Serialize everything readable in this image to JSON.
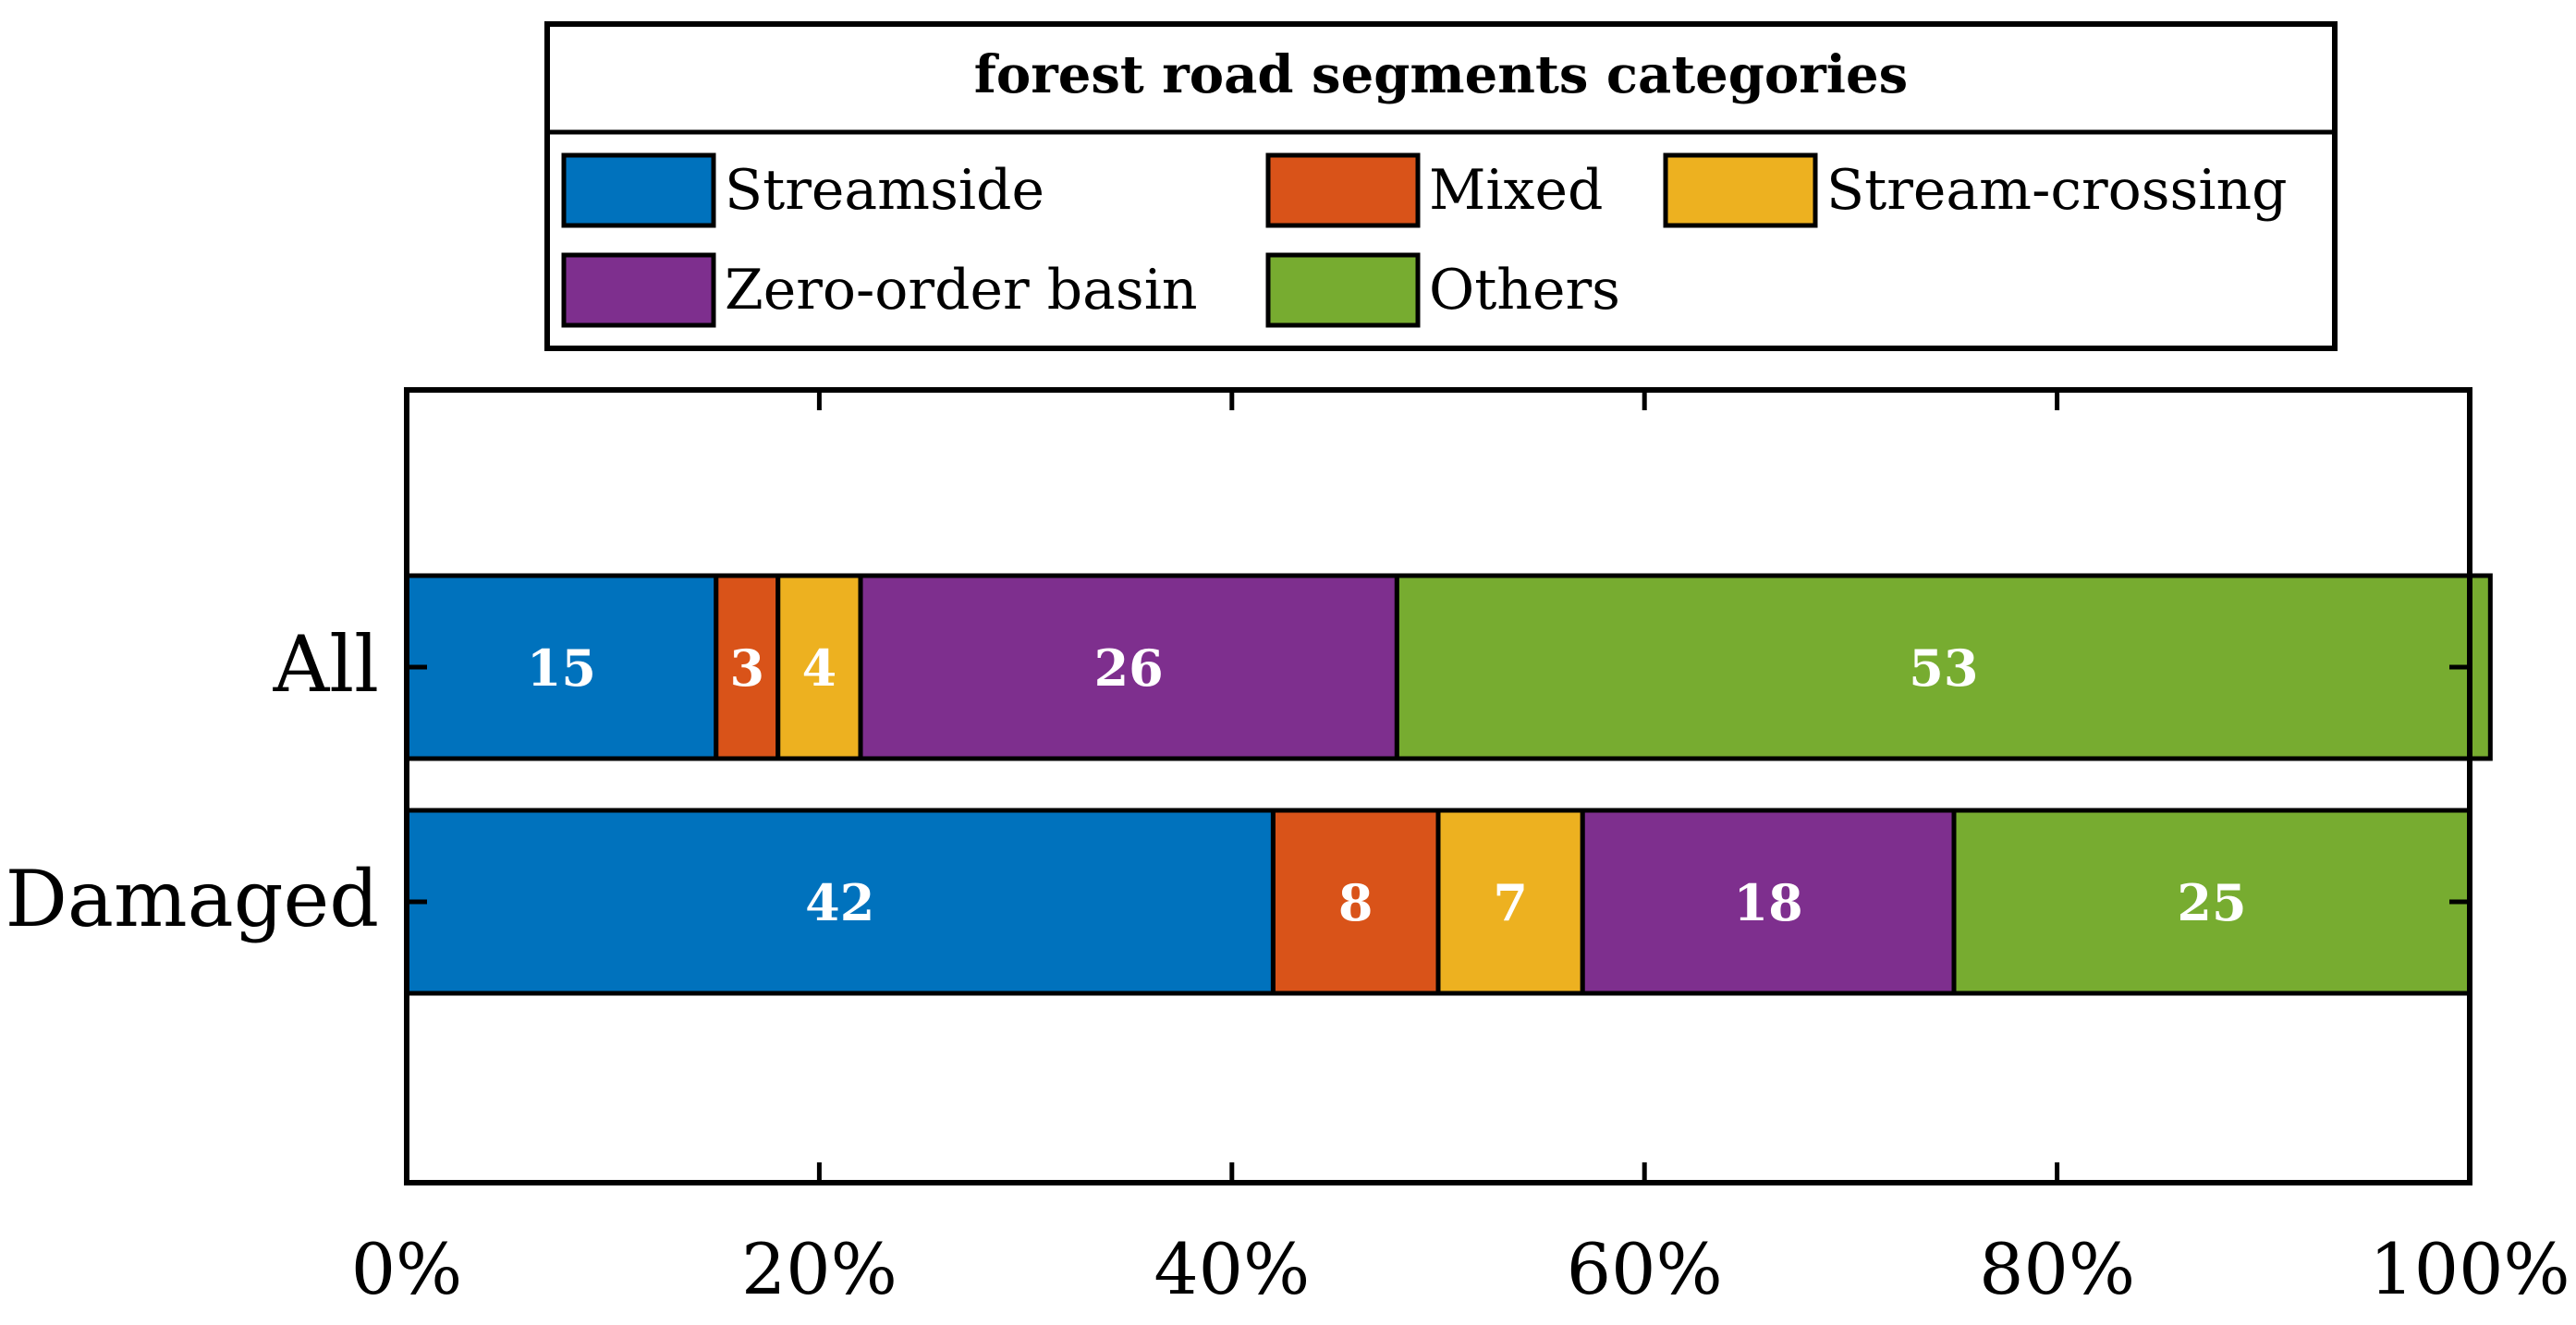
{
  "chart_data": {
    "type": "bar",
    "orientation": "horizontal",
    "stacked": true,
    "legend_title": "forest road segments categories",
    "categories": [
      "All",
      "Damaged"
    ],
    "series": [
      {
        "name": "Streamside",
        "color": "#0072BD",
        "values": [
          15,
          42
        ]
      },
      {
        "name": "Mixed",
        "color": "#D95319",
        "values": [
          3,
          8
        ]
      },
      {
        "name": "Stream-crossing",
        "color": "#EDB120",
        "values": [
          4,
          7
        ]
      },
      {
        "name": "Zero-order basin",
        "color": "#7E2F8E",
        "values": [
          26,
          18
        ]
      },
      {
        "name": "Others",
        "color": "#77AC30",
        "values": [
          53,
          25
        ]
      }
    ],
    "xlim": [
      0,
      100
    ],
    "xticks": [
      0,
      20,
      40,
      60,
      80,
      100
    ],
    "xtick_labels": [
      "0%",
      "20%",
      "40%",
      "60%",
      "80%",
      "100%"
    ],
    "legend_position": "top",
    "grid": false,
    "label_color": "#ffffff"
  }
}
